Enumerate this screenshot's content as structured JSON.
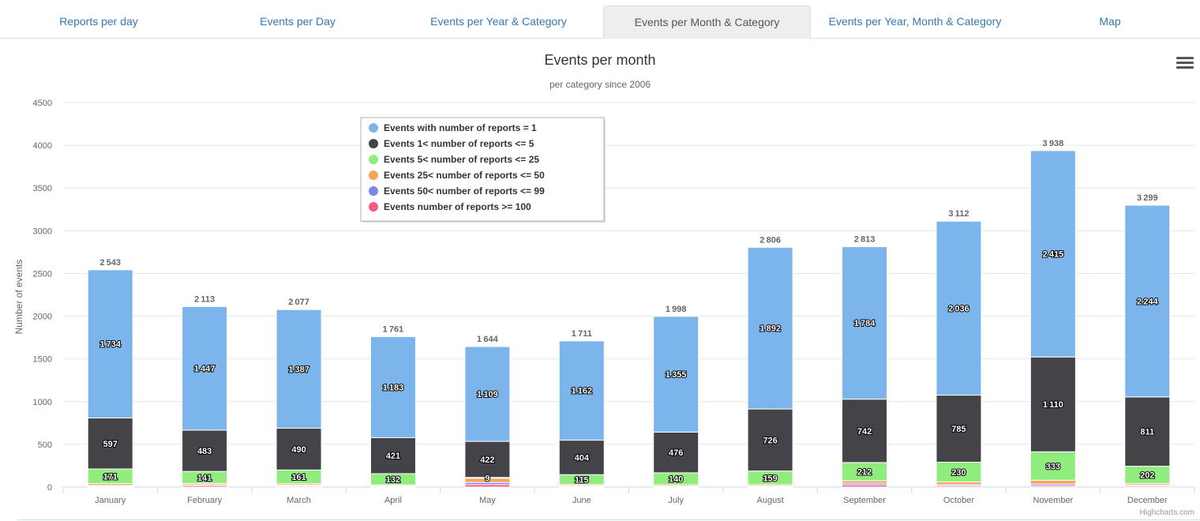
{
  "tabs": [
    {
      "label": "Reports per day",
      "active": false
    },
    {
      "label": "Events per Day",
      "active": false
    },
    {
      "label": "Events per Year & Category",
      "active": false
    },
    {
      "label": "Events per Month & Category",
      "active": true
    },
    {
      "label": "Events per Year, Month & Category",
      "active": false
    },
    {
      "label": "Map",
      "active": false
    }
  ],
  "menu_icon": "hamburger-menu-icon",
  "credits": "Highcharts.com",
  "chart_data": {
    "type": "bar",
    "stacked": true,
    "title": "Events per month",
    "subtitle": "per category since 2006",
    "xlabel": "",
    "ylabel": "Number of events",
    "ylim": [
      0,
      4500
    ],
    "yticks": [
      0,
      500,
      1000,
      1500,
      2000,
      2500,
      3000,
      3500,
      4000,
      4500
    ],
    "grid": true,
    "legend_placement": "top-left",
    "categories": [
      "January",
      "February",
      "March",
      "April",
      "May",
      "June",
      "July",
      "August",
      "September",
      "October",
      "November",
      "December"
    ],
    "totals": [
      2543,
      2113,
      2077,
      1761,
      1644,
      1711,
      1998,
      2806,
      2813,
      3112,
      3938,
      3299
    ],
    "series": [
      {
        "name": "Events with number of reports = 1",
        "color": "#7cb5ec",
        "values": [
          1734,
          1447,
          1387,
          1183,
          1109,
          1162,
          1355,
          1892,
          1784,
          2036,
          2415,
          2244
        ]
      },
      {
        "name": "Events 1< number of reports <= 5",
        "color": "#434348",
        "values": [
          597,
          483,
          490,
          421,
          422,
          404,
          476,
          726,
          742,
          785,
          1110,
          811
        ]
      },
      {
        "name": "Events 5< number of reports <= 25",
        "color": "#90ed7d",
        "values": [
          171,
          141,
          161,
          132,
          9,
          115,
          140,
          159,
          212,
          230,
          333,
          202
        ]
      },
      {
        "name": "Events 25< number of reports <= 50",
        "color": "#f7a35c",
        "values": [
          22,
          16,
          18,
          12,
          50,
          14,
          15,
          15,
          30,
          32,
          45,
          17
        ]
      },
      {
        "name": "Events 50< number of reports <= 99",
        "color": "#8085e9",
        "values": [
          10,
          8,
          9,
          6,
          25,
          7,
          6,
          7,
          20,
          14,
          20,
          12
        ]
      },
      {
        "name": "Events number of reports >= 100",
        "color": "#f15c80",
        "values": [
          9,
          18,
          12,
          7,
          29,
          9,
          6,
          7,
          25,
          15,
          15,
          13
        ]
      }
    ],
    "labelled_series": [
      0,
      1,
      2
    ]
  }
}
